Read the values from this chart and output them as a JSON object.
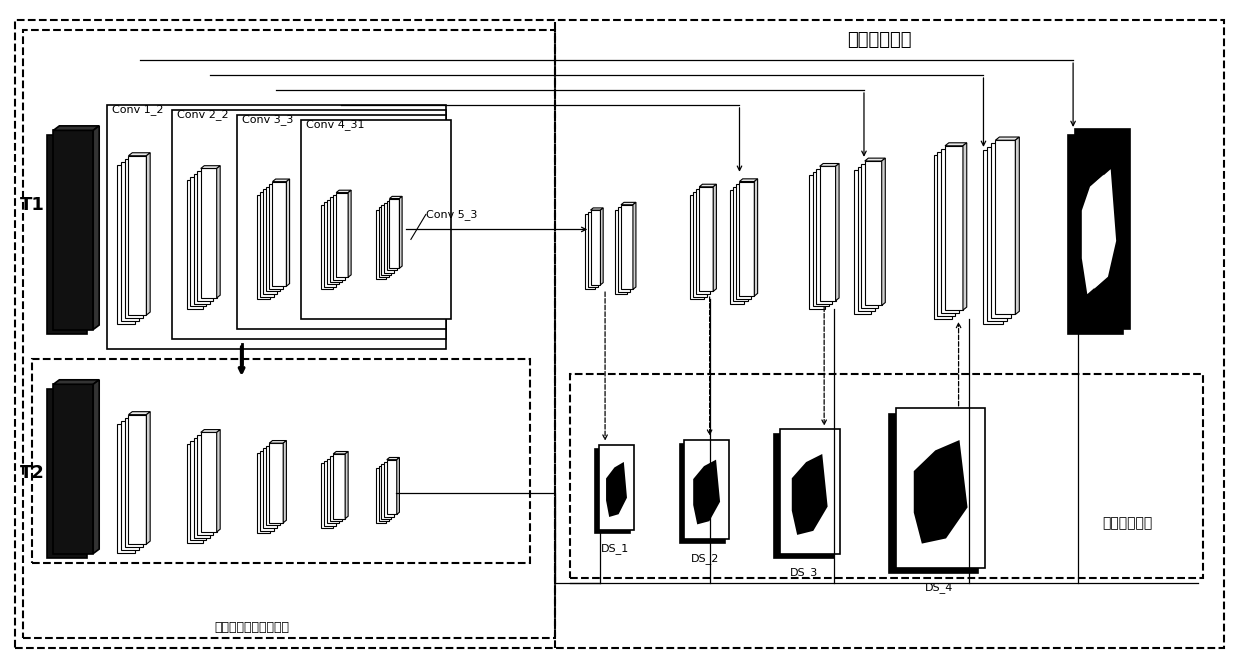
{
  "bg_color": "#ffffff",
  "fig_width": 12.4,
  "fig_height": 6.64,
  "labels": {
    "T1": "T1",
    "T2": "T2",
    "shared_net": "共享深度特征提取网络",
    "change_net": "变化检测网络",
    "multilevel": "多层深度监督",
    "conv1_2": "Conv 1_2",
    "conv2_2": "Conv 2_2",
    "conv3_3": "Conv 3_3",
    "conv4_31": "Conv 4_31",
    "conv5_3": "Conv 5_3",
    "ds1": "DS_1",
    "ds2": "DS_2",
    "ds3": "DS_3",
    "ds4": "DS_4"
  }
}
